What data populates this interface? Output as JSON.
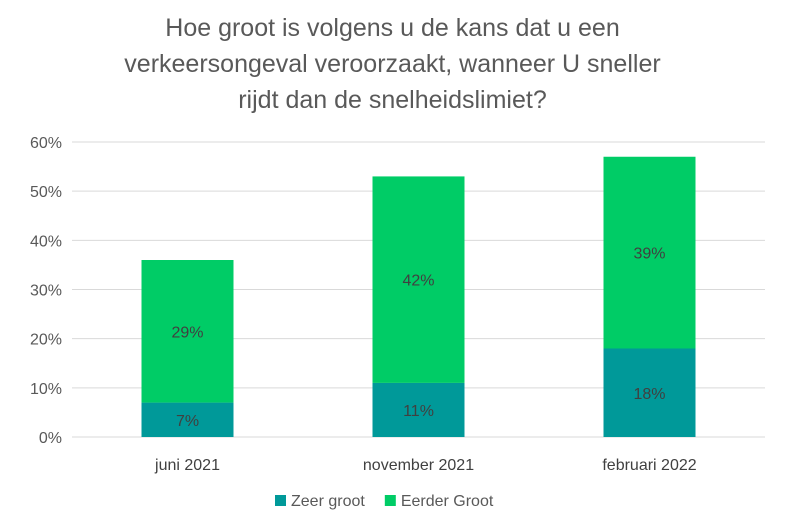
{
  "chart_data": {
    "type": "bar",
    "stacked": true,
    "title_lines": [
      "Hoe groot is volgens u de kans dat u een",
      "verkeersongeval veroorzaakt, wanneer U sneller",
      "rijdt dan de snelheidslimiet?"
    ],
    "categories": [
      "juni 2021",
      "november 2021",
      "februari 2022"
    ],
    "series": [
      {
        "name": "Zeer groot",
        "values": [
          7,
          11,
          18
        ],
        "labels": [
          "7%",
          "11%",
          "18%"
        ],
        "color": "#009999"
      },
      {
        "name": "Eerder Groot",
        "values": [
          29,
          42,
          39
        ],
        "labels": [
          "29%",
          "42%",
          "39%"
        ],
        "color": "#00CC66"
      }
    ],
    "yticks": [
      "0%",
      "10%",
      "20%",
      "30%",
      "40%",
      "50%",
      "60%"
    ],
    "ylim": [
      0,
      60
    ],
    "grid": true,
    "legend": "bottom"
  }
}
